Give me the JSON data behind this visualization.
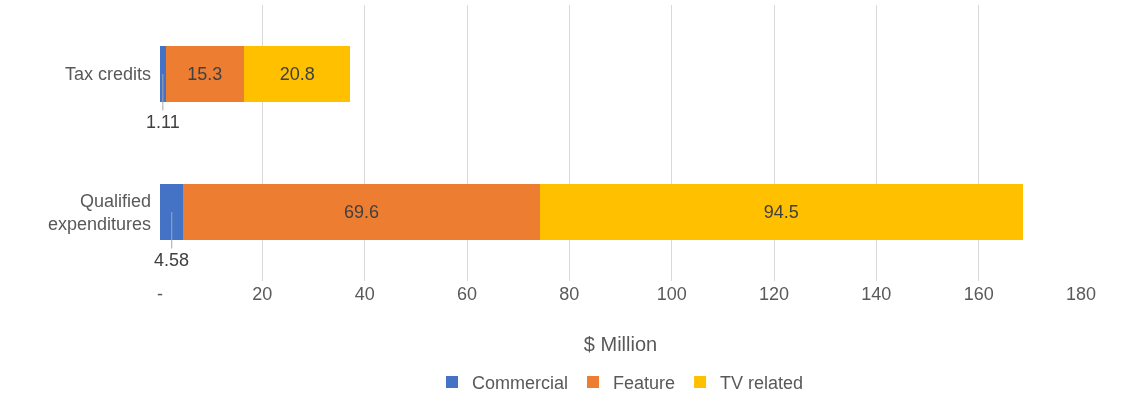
{
  "chart_data": {
    "type": "bar",
    "orientation": "horizontal",
    "stacked": true,
    "categories": [
      "Tax credits",
      "Qualified expenditures"
    ],
    "series": [
      {
        "name": "Commercial",
        "color": "#4472c4",
        "values": [
          1.11,
          4.58
        ]
      },
      {
        "name": "Feature",
        "color": "#ed7d31",
        "values": [
          15.3,
          69.6
        ]
      },
      {
        "name": "TV related",
        "color": "#ffc000",
        "values": [
          20.8,
          94.5
        ]
      }
    ],
    "xlabel": "$ Million",
    "xlim": [
      0,
      180
    ],
    "xticks": [
      {
        "value": 0,
        "label": "-"
      },
      20,
      40,
      60,
      80,
      100,
      120,
      140,
      160,
      180
    ],
    "grid": "x",
    "legend": "bottom",
    "data_labels": true
  }
}
